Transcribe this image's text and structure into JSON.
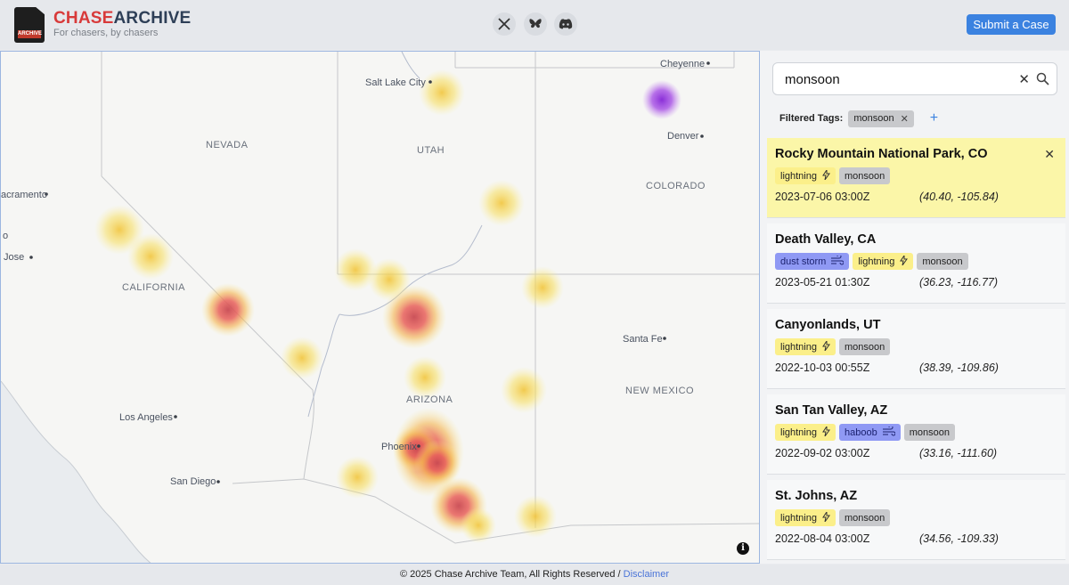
{
  "header": {
    "logo_text": "ARCHIVE",
    "brand_red": "CHASE",
    "brand_dark": "ARCHIVE",
    "tagline": "For chasers, by chasers",
    "submit_label": "Submit a Case"
  },
  "colors": {
    "brand_red": "#d83a3a",
    "accent_blue": "#3b82e0",
    "selected_card": "#fbf6a8"
  },
  "map": {
    "labels": {
      "cheyenne": "Cheyenne",
      "salt_lake_city": "Salt Lake City",
      "denver": "Denver",
      "nevada": "NEVADA",
      "utah": "UTAH",
      "colorado": "COLORADO",
      "sacramento": "acramento",
      "san_jose_fragment": "o",
      "san_jose": "Jose",
      "california": "CALIFORNIA",
      "santa_fe": "Santa Fe",
      "arizona": "ARIZONA",
      "new_mexico": "NEW MEXICO",
      "los_angeles": "Los Angeles",
      "phoenix": "Phoenix",
      "san_diego": "San Diego"
    },
    "info_label": "i"
  },
  "search": {
    "value": "monsoon",
    "placeholder": "Search"
  },
  "filters": {
    "label": "Filtered Tags:",
    "tags": [
      "monsoon"
    ]
  },
  "results": [
    {
      "title": "Rocky Mountain National Park, CO",
      "tags": [
        {
          "label": "lightning",
          "kind": "yellow",
          "icon": "lightning"
        },
        {
          "label": "monsoon",
          "kind": "gray"
        }
      ],
      "time": "2023-07-06 03:00Z",
      "coords": "(40.40, -105.84)",
      "selected": true
    },
    {
      "title": "Death Valley, CA",
      "tags": [
        {
          "label": "dust storm",
          "kind": "blue",
          "icon": "wind"
        },
        {
          "label": "lightning",
          "kind": "yellow",
          "icon": "lightning"
        },
        {
          "label": "monsoon",
          "kind": "gray"
        }
      ],
      "time": "2023-05-21 01:30Z",
      "coords": "(36.23, -116.77)",
      "selected": false
    },
    {
      "title": "Canyonlands, UT",
      "tags": [
        {
          "label": "lightning",
          "kind": "yellow",
          "icon": "lightning"
        },
        {
          "label": "monsoon",
          "kind": "gray"
        }
      ],
      "time": "2022-10-03 00:55Z",
      "coords": "(38.39, -109.86)",
      "selected": false
    },
    {
      "title": "San Tan Valley, AZ",
      "tags": [
        {
          "label": "lightning",
          "kind": "yellow",
          "icon": "lightning"
        },
        {
          "label": "haboob",
          "kind": "blue",
          "icon": "wind"
        },
        {
          "label": "monsoon",
          "kind": "gray"
        }
      ],
      "time": "2022-09-02 03:00Z",
      "coords": "(33.16, -111.60)",
      "selected": false
    },
    {
      "title": "St. Johns, AZ",
      "tags": [
        {
          "label": "lightning",
          "kind": "yellow",
          "icon": "lightning"
        },
        {
          "label": "monsoon",
          "kind": "gray"
        }
      ],
      "time": "2022-08-04 03:00Z",
      "coords": "(34.56, -109.33)",
      "selected": false
    }
  ],
  "footer": {
    "text": "© 2025 Chase Archive Team, All Rights Reserved / ",
    "link": "Disclaimer"
  }
}
